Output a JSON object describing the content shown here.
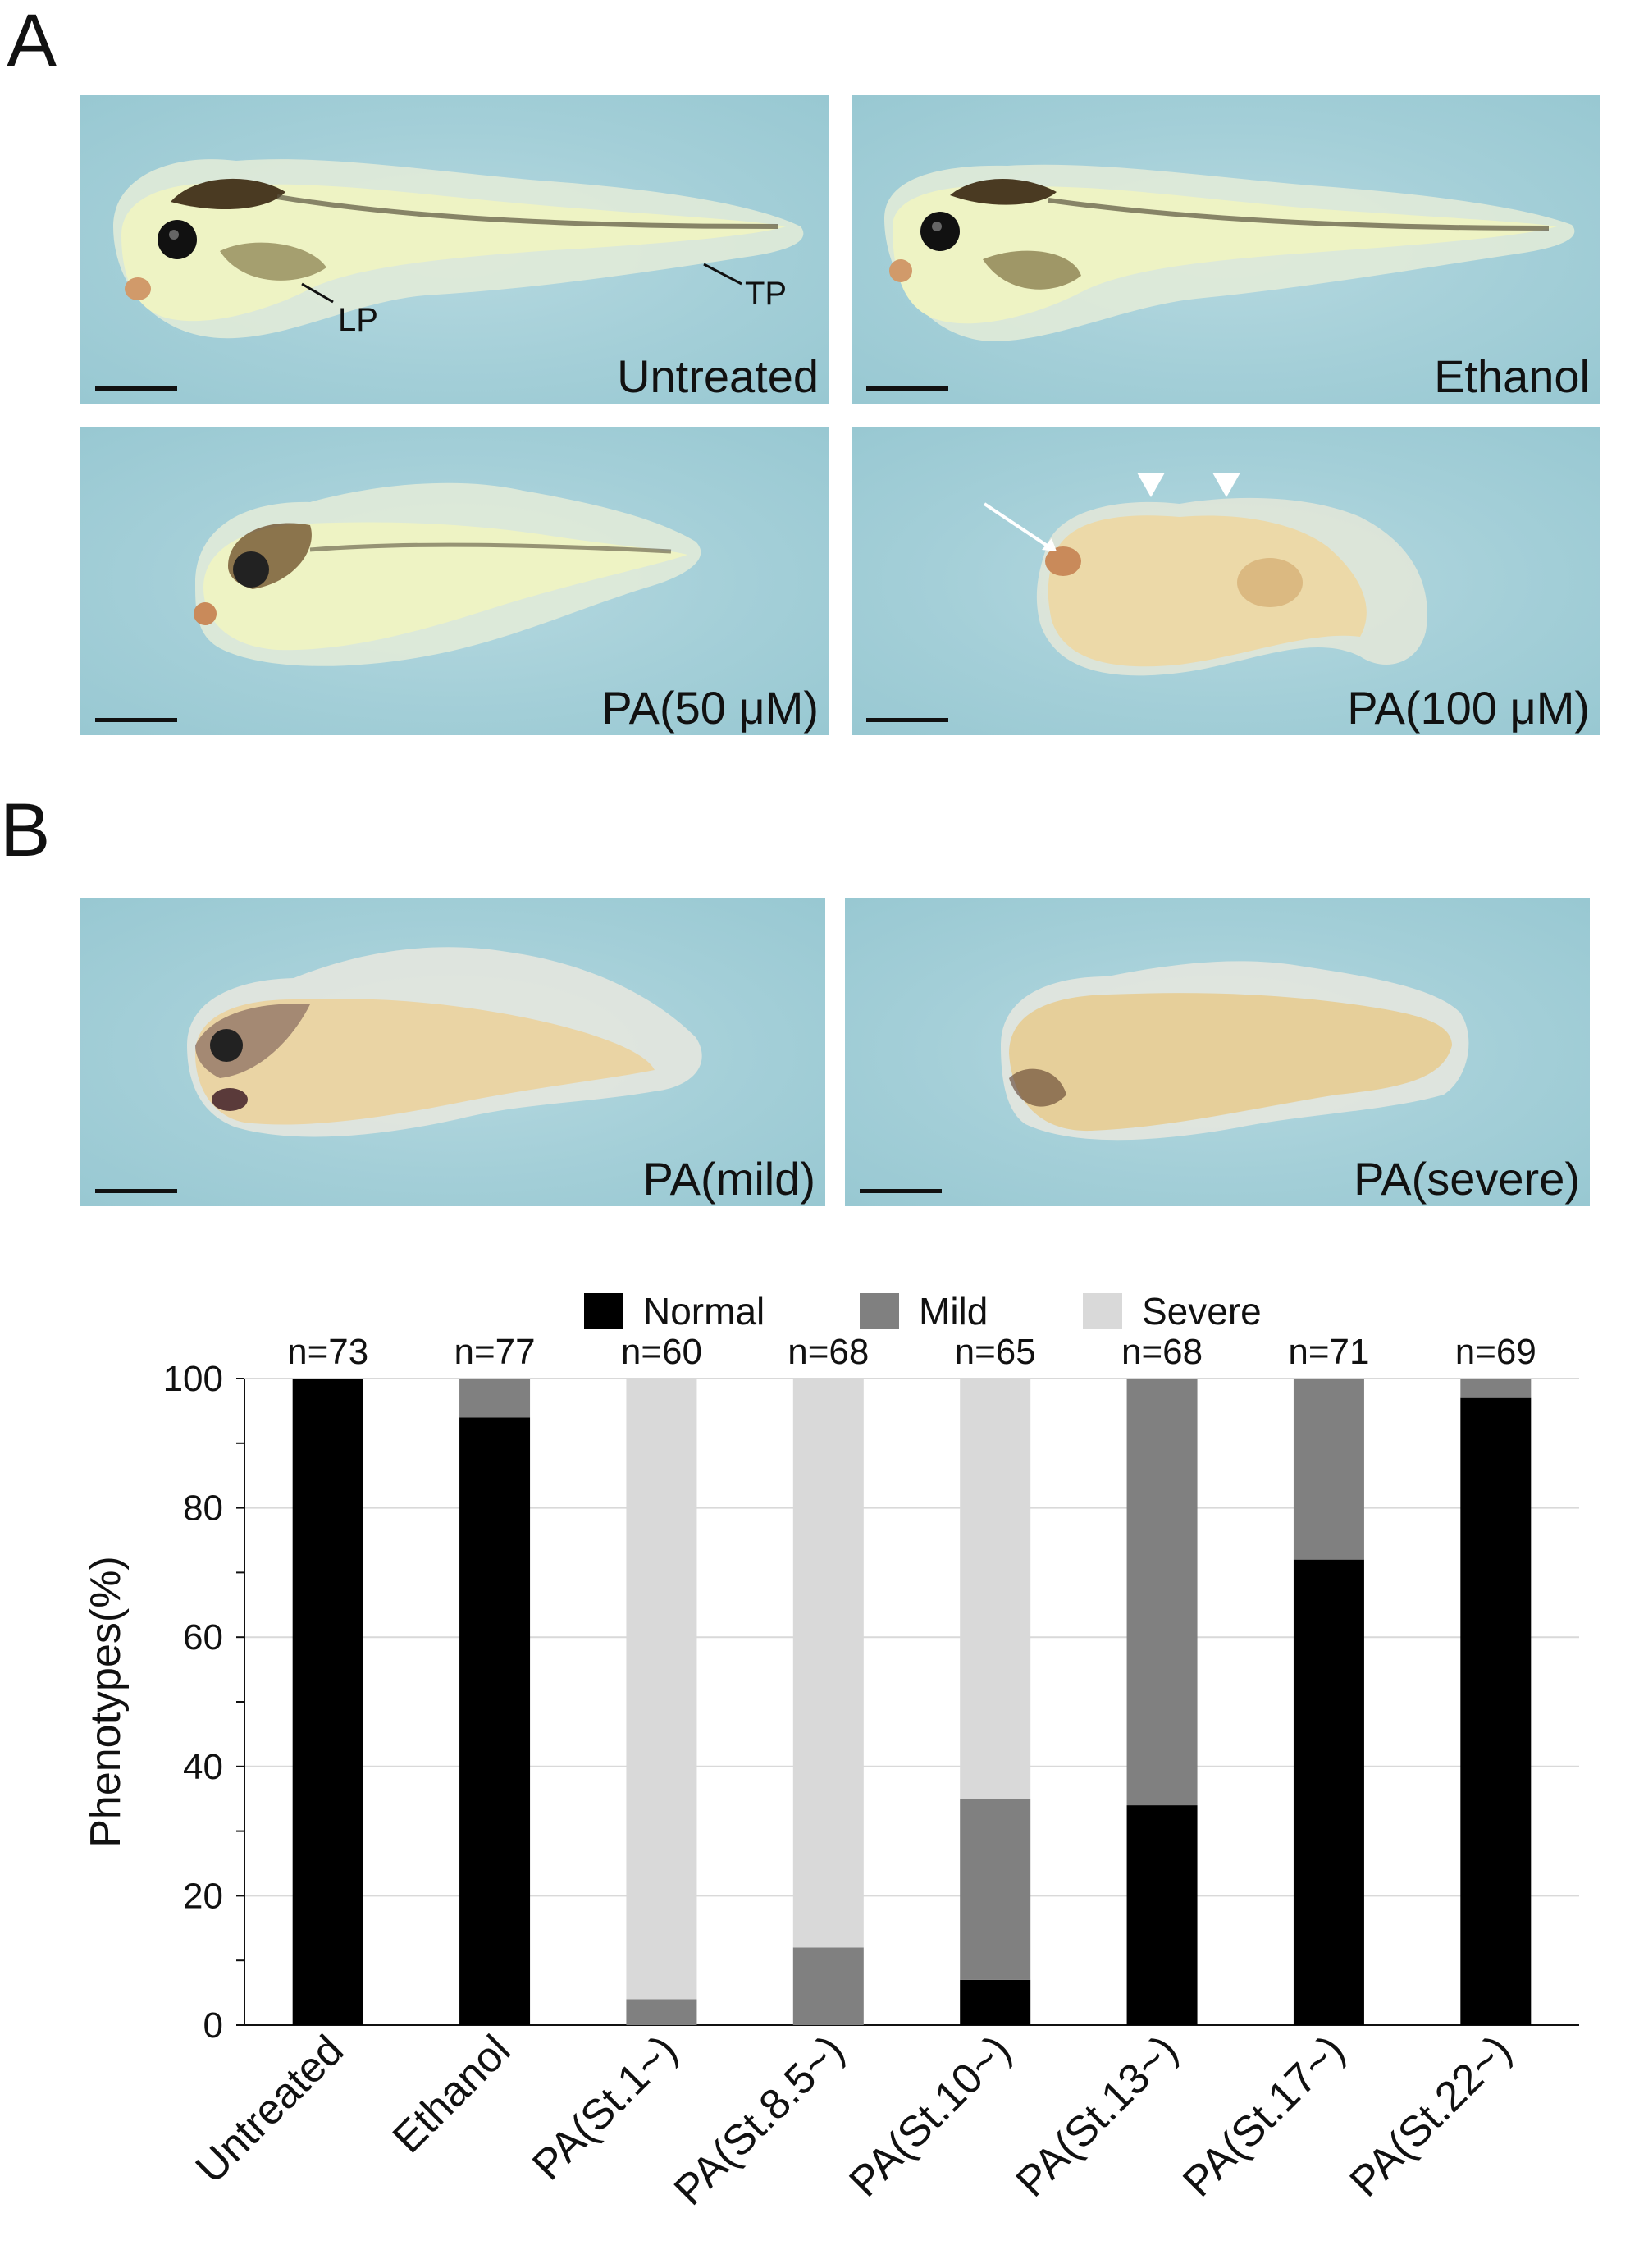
{
  "figure": {
    "panel_a_label": "A",
    "panel_b_label": "B",
    "panels_a": [
      {
        "caption": "Untreated",
        "annotations": [
          "LP",
          "TP"
        ],
        "morph": "normal"
      },
      {
        "caption": "Ethanol",
        "annotations": [],
        "morph": "normal"
      },
      {
        "caption": "PA(50 μM)",
        "annotations": [],
        "morph": "mild"
      },
      {
        "caption": "PA(100 μM)",
        "annotations": [],
        "morph": "severe"
      }
    ],
    "panels_b": [
      {
        "caption": "PA(mild)",
        "morph": "mild-b"
      },
      {
        "caption": "PA(severe)",
        "morph": "severe-b"
      }
    ]
  },
  "chart_data": {
    "type": "bar",
    "stacked": true,
    "categories": [
      "Untreated",
      "Ethanol",
      "PA(St.1~)",
      "PA(St.8.5~)",
      "PA(St.10~)",
      "PA(St.13~)",
      "PA(St.17~)",
      "PA(St.22~)"
    ],
    "n_labels": [
      "n=73",
      "n=77",
      "n=60",
      "n=68",
      "n=65",
      "n=68",
      "n=71",
      "n=69"
    ],
    "series": [
      {
        "name": "Normal",
        "color": "#000000",
        "values": [
          100,
          94,
          0,
          0,
          7,
          34,
          72,
          97
        ]
      },
      {
        "name": "Mild",
        "color": "#808080",
        "values": [
          0,
          6,
          4,
          12,
          28,
          66,
          28,
          3
        ]
      },
      {
        "name": "Severe",
        "color": "#d9d9d9",
        "values": [
          0,
          0,
          96,
          88,
          65,
          0,
          0,
          0
        ]
      }
    ],
    "ylabel": "Phenotypes(%)",
    "ylim": [
      0,
      100
    ],
    "yticks": [
      0,
      20,
      40,
      60,
      80,
      100
    ],
    "grid": true,
    "legend_position": "top"
  }
}
